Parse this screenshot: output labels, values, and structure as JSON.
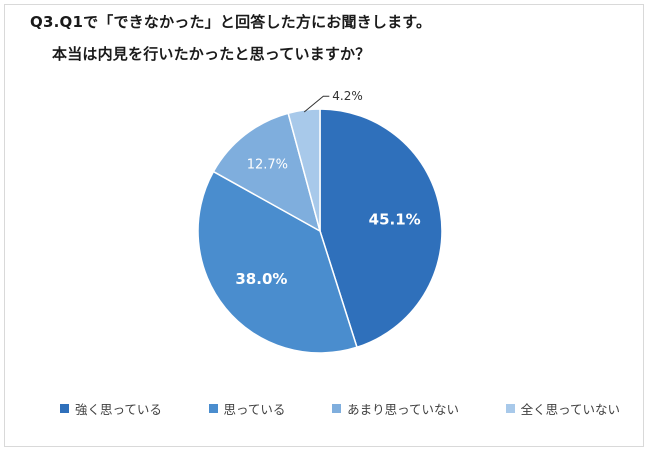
{
  "header": {
    "question": "Q3.Q1で「できなかった」と回答した方にお聞きします。",
    "subquestion": "本当は内見を行いたかったと思っていますか？"
  },
  "chart_data": {
    "type": "pie",
    "title": "Q3.Q1で「できなかった」と回答した方にお聞きします。 本当は内見を行いたかったと思っていますか？",
    "categories": [
      "強く思っている",
      "思っている",
      "あまり思っていない",
      "全く思っていない"
    ],
    "values": [
      45.1,
      38.0,
      12.7,
      4.2
    ],
    "labels": [
      "45.1%",
      "38.0%",
      "12.7%",
      "4.2%"
    ],
    "colors": [
      "#2f70bb",
      "#4a8dce",
      "#7faedd",
      "#a8c9ea"
    ],
    "start_angle": "12 o'clock",
    "direction": "clockwise",
    "legend": "bottom"
  }
}
